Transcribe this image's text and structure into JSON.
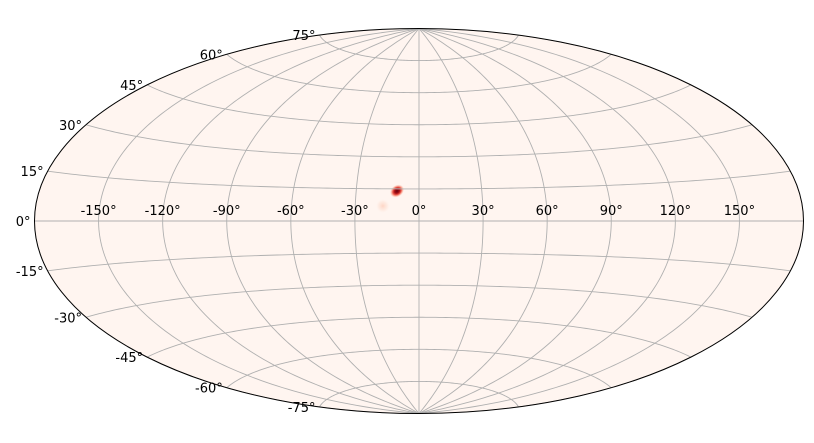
{
  "chart_data": {
    "type": "heatmap",
    "projection": "aitoff",
    "title": "",
    "xlabel": "",
    "ylabel": "",
    "xlim": [
      -180,
      180
    ],
    "ylim": [
      -90,
      90
    ],
    "grid": true,
    "colormap": "Reds",
    "background_color": "#fff5f0",
    "x_ticks": [
      -150,
      -120,
      -90,
      -60,
      -30,
      0,
      30,
      60,
      90,
      120,
      150
    ],
    "x_tick_labels": [
      "-150°",
      "-120°",
      "-90°",
      "-60°",
      "-30°",
      "0°",
      "30°",
      "60°",
      "90°",
      "120°",
      "150°"
    ],
    "y_ticks": [
      -75,
      -60,
      -45,
      -30,
      -15,
      0,
      15,
      30,
      45,
      60,
      75
    ],
    "y_tick_labels": [
      "-75°",
      "-60°",
      "-45°",
      "-30°",
      "-15°",
      "0°",
      "15°",
      "30°",
      "45°",
      "60°",
      "75°"
    ],
    "hotspots": [
      {
        "lon": -10.5,
        "lat": 14.0,
        "sigma_lon": 1.8,
        "sigma_lat": 1.4,
        "intensity": 1.0
      },
      {
        "lon": -17.0,
        "lat": 7.0,
        "sigma_lon": 1.6,
        "sigma_lat": 1.6,
        "intensity": 0.12
      }
    ]
  }
}
